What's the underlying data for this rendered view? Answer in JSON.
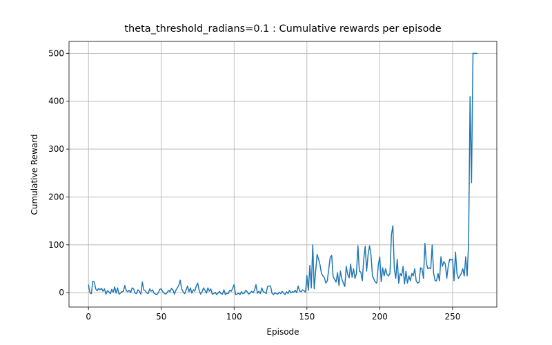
{
  "chart_data": {
    "type": "line",
    "title": "theta_threshold_radians=0.1 : Cumulative rewards per episode",
    "x_label": "Episode",
    "y_label": "Cumulative Reward",
    "xlim": [
      -13.35,
      280.35
    ],
    "ylim": [
      -30,
      525
    ],
    "xticks": [
      0,
      50,
      100,
      150,
      200,
      250
    ],
    "yticks": [
      0,
      100,
      200,
      300,
      400,
      500
    ],
    "grid": true,
    "x": [
      0,
      1,
      2,
      3,
      4,
      5,
      6,
      7,
      8,
      9,
      10,
      11,
      12,
      13,
      14,
      15,
      16,
      17,
      18,
      19,
      20,
      21,
      22,
      23,
      24,
      25,
      26,
      27,
      28,
      29,
      30,
      31,
      32,
      33,
      34,
      35,
      36,
      37,
      38,
      39,
      40,
      41,
      42,
      43,
      44,
      45,
      46,
      47,
      48,
      49,
      50,
      51,
      52,
      53,
      54,
      55,
      56,
      57,
      58,
      59,
      60,
      61,
      62,
      63,
      64,
      65,
      66,
      67,
      68,
      69,
      70,
      71,
      72,
      73,
      74,
      75,
      76,
      77,
      78,
      79,
      80,
      81,
      82,
      83,
      84,
      85,
      86,
      87,
      88,
      89,
      90,
      91,
      92,
      93,
      94,
      95,
      96,
      97,
      98,
      99,
      100,
      101,
      102,
      103,
      104,
      105,
      106,
      107,
      108,
      109,
      110,
      111,
      112,
      113,
      114,
      115,
      116,
      117,
      118,
      119,
      120,
      121,
      122,
      123,
      124,
      125,
      126,
      127,
      128,
      129,
      130,
      131,
      132,
      133,
      134,
      135,
      136,
      137,
      138,
      139,
      140,
      141,
      142,
      143,
      144,
      145,
      146,
      147,
      148,
      149,
      150,
      151,
      152,
      153,
      154,
      155,
      156,
      157,
      158,
      159,
      160,
      161,
      162,
      163,
      164,
      165,
      166,
      167,
      168,
      169,
      170,
      171,
      172,
      173,
      174,
      175,
      176,
      177,
      178,
      179,
      180,
      181,
      182,
      183,
      184,
      185,
      186,
      187,
      188,
      189,
      190,
      191,
      192,
      193,
      194,
      195,
      196,
      197,
      198,
      199,
      200,
      201,
      202,
      203,
      204,
      205,
      206,
      207,
      208,
      209,
      210,
      211,
      212,
      213,
      214,
      215,
      216,
      217,
      218,
      219,
      220,
      221,
      222,
      223,
      224,
      225,
      226,
      227,
      228,
      229,
      230,
      231,
      232,
      233,
      234,
      235,
      236,
      237,
      238,
      239,
      240,
      241,
      242,
      243,
      244,
      245,
      246,
      247,
      248,
      249,
      250,
      251,
      252,
      253,
      254,
      255,
      256,
      257,
      258,
      259,
      260,
      261,
      262,
      263,
      264,
      265,
      266,
      267
    ],
    "series": [
      {
        "color": "#1f77b4",
        "values": [
          17,
          0,
          -2,
          24,
          22,
          8,
          4,
          9,
          6,
          9,
          3,
          8,
          -3,
          4,
          2,
          -2,
          7,
          1,
          12,
          -1,
          10,
          -3,
          -1,
          2,
          3,
          15,
          4,
          2,
          5,
          0,
          10,
          8,
          -1,
          -2,
          6,
          3,
          -3,
          22,
          6,
          4,
          0,
          -2,
          8,
          3,
          6,
          -1,
          -3,
          -4,
          0,
          7,
          8,
          2,
          -1,
          -3,
          0,
          5,
          2,
          9,
          6,
          -3,
          5,
          10,
          15,
          26,
          8,
          2,
          -2,
          5,
          14,
          2,
          10,
          -1,
          6,
          3,
          14,
          20,
          5,
          -3,
          2,
          10,
          5,
          -1,
          10,
          3,
          8,
          -3,
          -2,
          1,
          -4,
          -1,
          3,
          -2,
          -3,
          6,
          -4,
          -1,
          -2,
          5,
          3,
          9,
          17,
          -4,
          -3,
          -1,
          -4,
          2,
          -2,
          -1,
          5,
          2,
          -3,
          -1,
          3,
          0,
          5,
          17,
          -1,
          3,
          -2,
          10,
          2,
          1,
          -2,
          13,
          14,
          14,
          -1,
          -4,
          0,
          -2,
          -3,
          1,
          -2,
          3,
          -1,
          -4,
          2,
          -2,
          5,
          0,
          2,
          1,
          5,
          0,
          14,
          3,
          2,
          6,
          4,
          1,
          36,
          5,
          57,
          10,
          100,
          8,
          45,
          80,
          70,
          58,
          40,
          35,
          31,
          20,
          25,
          50,
          74,
          78,
          33,
          28,
          22,
          42,
          15,
          45,
          28,
          20,
          13,
          55,
          38,
          31,
          60,
          32,
          50,
          30,
          40,
          98,
          45,
          43,
          25,
          70,
          97,
          45,
          80,
          98,
          78,
          35,
          28,
          22,
          20,
          58,
          75,
          23,
          52,
          35,
          50,
          38,
          35,
          40,
          121,
          140,
          50,
          30,
          70,
          20,
          40,
          35,
          55,
          18,
          45,
          20,
          35,
          25,
          40,
          35,
          50,
          25,
          20,
          22,
          52,
          50,
          30,
          103,
          62,
          50,
          52,
          50,
          100,
          40,
          25,
          25,
          40,
          25,
          75,
          55,
          65,
          60,
          30,
          55,
          70,
          68,
          70,
          25,
          85,
          40,
          30,
          35,
          40,
          50,
          35,
          75,
          35,
          105,
          410,
          230,
          500,
          500,
          500,
          500
        ]
      }
    ]
  }
}
